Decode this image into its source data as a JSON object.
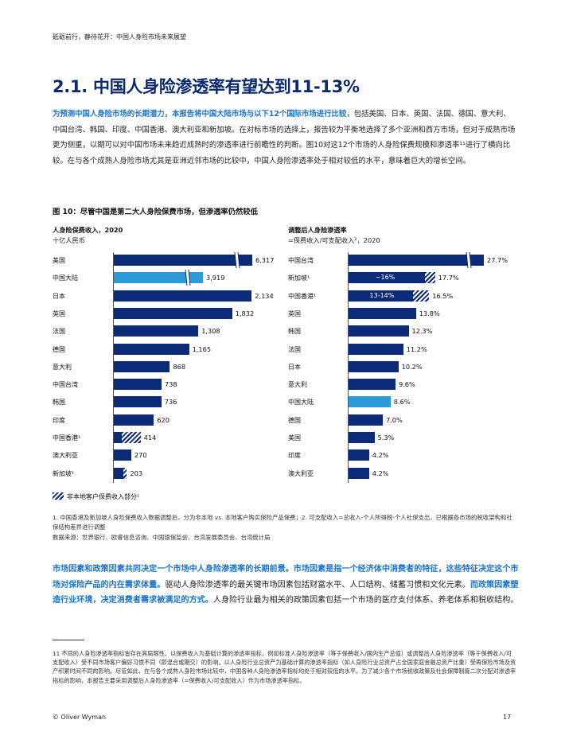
{
  "running_header": "砥砺前行，静待花开：中国人身险市场未来展望",
  "title": "2.1. 中国人身险渗透率有望达到11-13%",
  "intro": {
    "lead": "为预测中国人身险市场的长期潜力，本报告将中国大陆市场与以下12个国际市场进行比较",
    "rest": "，包括美国、日本、英国、法国、德国、意大利、中国台湾、韩国、印度、中国香港、澳大利亚和新加坡。在对标市场的选择上，报告较为平衡地选择了多个亚洲和西方市场，但对于成熟市场更为侧重，以期可以对中国市场未来趋近成熟时的渗透率进行前瞻性的判断。图10对这12个市场的人身险保费规模和渗透率¹¹进行了横向比较。在与各个成熟人身险市场尤其是亚洲近邻市场的比较中，中国人身险渗透率处于相对较低的水平，意味着巨大的增长空间。"
  },
  "figure_title": "图 10：尽管中国是第二大人身险保费市场，但渗透率仍然较低",
  "left_panel": {
    "title": "人身险保费收入，2020",
    "subtitle": "十亿人民币",
    "rows": [
      {
        "label": "美国",
        "value": 6317,
        "value_text": "6,317",
        "highlight": false,
        "hatch": 0,
        "broken": true
      },
      {
        "label": "中国大陆",
        "value": 3919,
        "value_text": "3,919",
        "highlight": true,
        "hatch": 0,
        "broken": true
      },
      {
        "label": "日本",
        "value": 2134,
        "value_text": "2,134",
        "highlight": false,
        "hatch": 0,
        "broken": false
      },
      {
        "label": "英国",
        "value": 1832,
        "value_text": "1,832",
        "highlight": false,
        "hatch": 0,
        "broken": false
      },
      {
        "label": "法国",
        "value": 1308,
        "value_text": "1,308",
        "highlight": false,
        "hatch": 0,
        "broken": false
      },
      {
        "label": "德国",
        "value": 1165,
        "value_text": "1,165",
        "highlight": false,
        "hatch": 0,
        "broken": false
      },
      {
        "label": "意大利",
        "value": 868,
        "value_text": "868",
        "highlight": false,
        "hatch": 0,
        "broken": false
      },
      {
        "label": "中国台湾",
        "value": 738,
        "value_text": "738",
        "highlight": false,
        "hatch": 0,
        "broken": false
      },
      {
        "label": "韩国",
        "value": 736,
        "value_text": "736",
        "highlight": false,
        "hatch": 0,
        "broken": false
      },
      {
        "label": "印度",
        "value": 620,
        "value_text": "620",
        "highlight": false,
        "hatch": 0,
        "broken": false
      },
      {
        "label": "中国香港¹",
        "value": 414,
        "value_text": "414",
        "highlight": false,
        "hatch": 0.7,
        "broken": false
      },
      {
        "label": "澳大利亚",
        "value": 270,
        "value_text": "270",
        "highlight": false,
        "hatch": 0,
        "broken": false
      },
      {
        "label": "新加坡¹",
        "value": 203,
        "value_text": "203",
        "highlight": false,
        "hatch": 0.3,
        "broken": false
      }
    ]
  },
  "right_panel": {
    "title": "调整后人身险渗透率",
    "subtitle": "=保费收入/可支配收入²，2020",
    "rows": [
      {
        "label": "中国台湾",
        "value": 27.7,
        "value_text": "27.7%",
        "highlight": false,
        "hatch": 0,
        "inner": "",
        "broken": true
      },
      {
        "label": "新加坡¹",
        "value": 17.7,
        "value_text": "17.7%",
        "highlight": false,
        "hatch": 0.12,
        "inner": "~16%",
        "broken": false
      },
      {
        "label": "中国香港¹",
        "value": 16.5,
        "value_text": "16.5%",
        "highlight": false,
        "hatch": 0.2,
        "inner": "13-14%",
        "broken": false
      },
      {
        "label": "英国",
        "value": 13.8,
        "value_text": "13.8%",
        "highlight": false,
        "hatch": 0,
        "inner": "",
        "broken": false
      },
      {
        "label": "韩国",
        "value": 12.3,
        "value_text": "12.3%",
        "highlight": false,
        "hatch": 0,
        "inner": "",
        "broken": false
      },
      {
        "label": "法国",
        "value": 11.2,
        "value_text": "11.2%",
        "highlight": false,
        "hatch": 0,
        "inner": "",
        "broken": false
      },
      {
        "label": "日本",
        "value": 10.2,
        "value_text": "10.2%",
        "highlight": false,
        "hatch": 0,
        "inner": "",
        "broken": false
      },
      {
        "label": "意大利",
        "value": 9.6,
        "value_text": "9.6%",
        "highlight": false,
        "hatch": 0,
        "inner": "",
        "broken": false
      },
      {
        "label": "中国大陆",
        "value": 8.6,
        "value_text": "8.6%",
        "highlight": true,
        "hatch": 0,
        "inner": "",
        "broken": false
      },
      {
        "label": "德国",
        "value": 7.0,
        "value_text": "7.0%",
        "highlight": false,
        "hatch": 0,
        "inner": "",
        "broken": false
      },
      {
        "label": "美国",
        "value": 5.3,
        "value_text": "5.3%",
        "highlight": false,
        "hatch": 0,
        "inner": "",
        "broken": false
      },
      {
        "label": "印度",
        "value": 4.2,
        "value_text": "4.2%",
        "highlight": false,
        "hatch": 0,
        "inner": "",
        "broken": false
      },
      {
        "label": "澳大利亚",
        "value": 4.2,
        "value_text": "4.2%",
        "highlight": false,
        "hatch": 0,
        "inner": "",
        "broken": false
      }
    ]
  },
  "legend": "非本地客户保费收入部分¹",
  "notes": "1. 中国香港及新加坡人身险保费收入数据调整后，分为非本地 vs. 本地客户购买保险产品保费；2. 可支配收入=总收入-个人所得税-个人社保支出，已根据各市场的税收架构和社保结构差异进行调整",
  "source": "数据来源：世界银行、欧睿信息咨询、中国银保监会、台湾发展委员会、台湾统计局",
  "para2": {
    "a": "市场因素和政策因素共同决定一个市场中人身险渗透率的长期前景。市场因素是指一个经济体中消费者的特征，这些特征决定这个市场对保险产品的内在需求体量。",
    "b": "驱动人身险渗透率的最关键市场因素包括财富水平、人口结构、储蓄习惯和文化元素。",
    "c": "而政策因素塑造行业环境，决定消费者需求被满足的方式。",
    "d": "人身险行业最为相关的政策因素包括一个市场的医疗支付体系、养老体系和税收结构。"
  },
  "footnote": "11 不同的人身险渗透率指标皆存在其局限性。以保费收入为基础计算的渗透率指标，例如标准人身险渗透率（等于保费收入/国内生产总值）或调整后人身险渗透率（等于保费收入/可支配收入）受不同市场客户偏好习惯不同（即混合或期交）的影响。以人身险行业总资产为基础计算的渗透率指标（如人身险行业总资产占全国家庭金融总资产比重）受再保险市场及资产积累时间不同的影响。尽管如此，在与各个成熟人身险市场比较中，中国各种人身险渗透率指标均处于相对较低的水平。为了减少各个市场税收政策及社会保障制度二次分配对渗透率指标的影响，本报告主要采用调整后人身险渗透率（=保费收入/可支配收入）作为市场渗透率指标。",
  "footer": {
    "left": "© Oliver Wyman",
    "page": "17"
  },
  "colors": {
    "bar": "#0b2a78",
    "highlight": "#2e9ad8",
    "title": "#0a2a6e",
    "accent": "#1b74c8"
  }
}
